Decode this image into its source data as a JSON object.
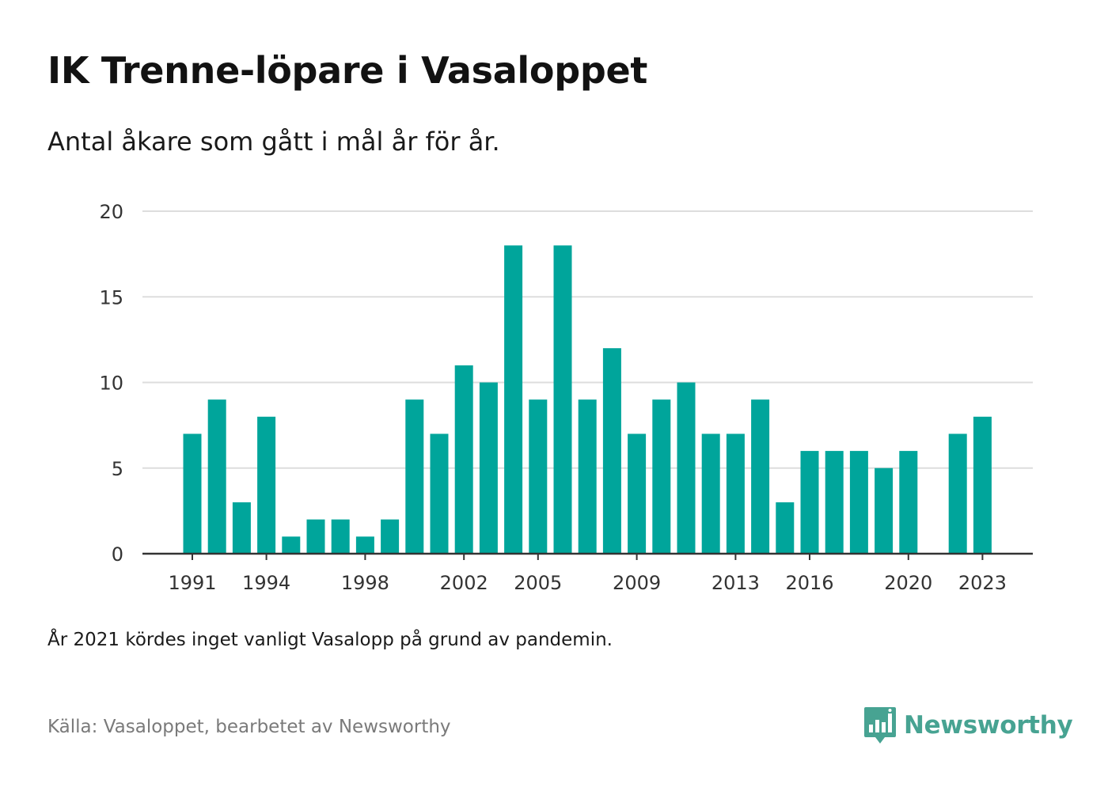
{
  "title": "IK Trenne-löpare i Vasaloppet",
  "subtitle": "Antal åkare som gått i mål år för år.",
  "note": "År 2021 kördes inget vanligt Vasalopp på grund av pandemin.",
  "source": "Källa: Vasaloppet, bearbetet av Newsworthy",
  "brand": {
    "name": "Newsworthy",
    "icon": "newsworthy-logo-icon",
    "color": "#47a392"
  },
  "chart_data": {
    "type": "bar",
    "title": "IK Trenne-löpare i Vasaloppet",
    "subtitle": "Antal åkare som gått i mål år för år.",
    "xlabel": "",
    "ylabel": "",
    "categories": [
      "1991",
      "1992",
      "1993",
      "1994",
      "1995",
      "1996",
      "1997",
      "1998",
      "1999",
      "2000",
      "2001",
      "2002",
      "2003",
      "2004",
      "2005",
      "2006",
      "2007",
      "2008",
      "2009",
      "2010",
      "2011",
      "2012",
      "2013",
      "2014",
      "2015",
      "2016",
      "2017",
      "2018",
      "2019",
      "2020",
      "2021",
      "2022",
      "2023"
    ],
    "values": [
      7,
      9,
      3,
      8,
      1,
      2,
      2,
      1,
      2,
      9,
      7,
      11,
      10,
      18,
      9,
      18,
      9,
      12,
      7,
      9,
      10,
      7,
      7,
      9,
      3,
      6,
      6,
      6,
      5,
      6,
      null,
      7,
      8
    ],
    "x_tick_labels": [
      "1991",
      "1994",
      "1998",
      "2002",
      "2005",
      "2009",
      "2013",
      "2016",
      "2020",
      "2023"
    ],
    "y_ticks": [
      0,
      5,
      10,
      15,
      20
    ],
    "ylim": [
      0,
      20
    ],
    "grid": true,
    "legend": "none",
    "bar_color": "#00a59b",
    "gridline_color": "#dddddd",
    "axis_color": "#333333"
  }
}
